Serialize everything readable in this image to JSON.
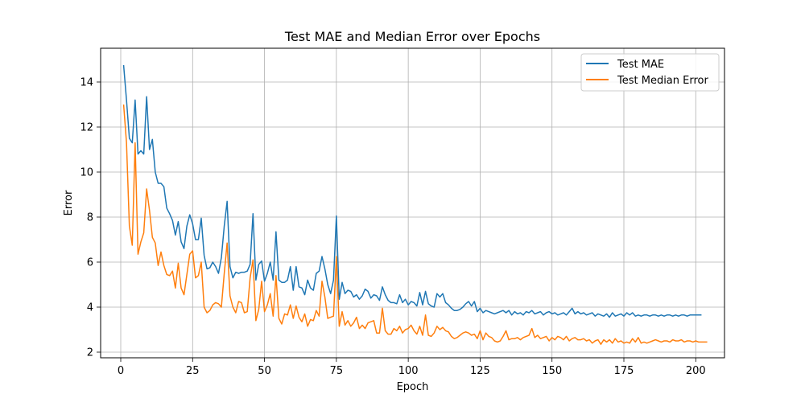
{
  "chart_data": {
    "type": "line",
    "title": "Test MAE and Median Error over Epochs",
    "xlabel": "Epoch",
    "ylabel": "Error",
    "xlim": [
      -7,
      210
    ],
    "ylim": [
      1.75,
      15.5
    ],
    "xticks": [
      0,
      25,
      50,
      75,
      100,
      125,
      150,
      175,
      200
    ],
    "yticks": [
      2,
      4,
      6,
      8,
      10,
      12,
      14
    ],
    "grid": true,
    "legend_position": "top-right",
    "series": [
      {
        "name": "Test MAE",
        "color": "#1f77b4",
        "x_start": 1,
        "values": [
          14.75,
          13.2,
          11.5,
          11.3,
          13.2,
          10.8,
          10.95,
          10.8,
          13.35,
          11.0,
          11.45,
          10.0,
          9.5,
          9.5,
          9.35,
          8.4,
          8.15,
          7.85,
          7.2,
          7.8,
          6.9,
          6.6,
          7.6,
          8.1,
          7.7,
          7.0,
          7.0,
          7.95,
          6.3,
          5.7,
          5.75,
          6.0,
          5.8,
          5.5,
          6.2,
          7.6,
          8.7,
          5.8,
          5.3,
          5.55,
          5.5,
          5.55,
          5.55,
          5.6,
          5.9,
          8.15,
          5.2,
          5.9,
          6.05,
          5.15,
          5.5,
          6.0,
          5.2,
          7.35,
          5.2,
          5.1,
          5.1,
          5.2,
          5.8,
          4.75,
          5.8,
          4.9,
          4.85,
          4.55,
          5.2,
          4.85,
          4.75,
          5.5,
          5.6,
          6.25,
          5.7,
          5.0,
          4.6,
          5.2,
          8.05,
          4.35,
          5.1,
          4.6,
          4.75,
          4.7,
          4.45,
          4.55,
          4.35,
          4.5,
          4.8,
          4.7,
          4.4,
          4.55,
          4.5,
          4.3,
          4.9,
          4.55,
          4.3,
          4.2,
          4.2,
          4.15,
          4.55,
          4.2,
          4.35,
          4.1,
          4.25,
          4.2,
          4.05,
          4.65,
          4.1,
          4.7,
          4.15,
          4.05,
          4.0,
          4.6,
          4.45,
          4.6,
          4.2,
          4.1,
          3.95,
          3.85,
          3.85,
          3.9,
          4.0,
          4.15,
          4.25,
          4.05,
          4.25,
          3.8,
          3.95,
          3.75,
          3.85,
          3.8,
          3.75,
          3.7,
          3.75,
          3.8,
          3.85,
          3.75,
          3.85,
          3.65,
          3.8,
          3.7,
          3.75,
          3.65,
          3.8,
          3.75,
          3.85,
          3.7,
          3.75,
          3.8,
          3.65,
          3.75,
          3.8,
          3.7,
          3.75,
          3.65,
          3.7,
          3.75,
          3.65,
          3.8,
          3.95,
          3.7,
          3.8,
          3.7,
          3.75,
          3.65,
          3.7,
          3.75,
          3.6,
          3.7,
          3.65,
          3.6,
          3.7,
          3.55,
          3.75,
          3.6,
          3.65,
          3.7,
          3.6,
          3.75,
          3.65,
          3.75,
          3.6,
          3.65,
          3.6,
          3.65,
          3.65,
          3.6,
          3.65,
          3.65,
          3.6,
          3.65,
          3.6,
          3.65,
          3.65,
          3.6,
          3.65,
          3.6,
          3.65,
          3.65,
          3.6,
          3.65,
          3.65,
          3.65,
          3.65,
          3.65
        ]
      },
      {
        "name": "Test Median Error",
        "color": "#ff7f0e",
        "x_start": 1,
        "values": [
          13.0,
          11.3,
          7.6,
          6.75,
          11.3,
          6.35,
          6.9,
          7.3,
          9.25,
          8.3,
          7.1,
          6.85,
          5.85,
          6.45,
          5.85,
          5.45,
          5.4,
          5.6,
          4.85,
          5.95,
          4.85,
          4.55,
          5.45,
          6.35,
          6.5,
          5.3,
          5.4,
          6.0,
          4.0,
          3.75,
          3.85,
          4.1,
          4.2,
          4.15,
          4.0,
          5.5,
          6.85,
          4.5,
          4.0,
          3.75,
          4.25,
          4.2,
          3.75,
          3.8,
          5.3,
          6.1,
          3.4,
          3.9,
          5.15,
          3.8,
          4.1,
          4.6,
          3.6,
          5.4,
          3.5,
          3.25,
          3.7,
          3.65,
          4.1,
          3.5,
          4.05,
          3.55,
          3.35,
          3.7,
          3.15,
          3.45,
          3.4,
          3.85,
          3.6,
          5.15,
          4.45,
          3.5,
          3.55,
          3.6,
          6.25,
          3.15,
          3.8,
          3.2,
          3.4,
          3.15,
          3.3,
          3.55,
          3.05,
          3.2,
          3.05,
          3.3,
          3.35,
          3.4,
          2.85,
          2.85,
          3.95,
          2.95,
          2.8,
          2.8,
          3.05,
          2.95,
          3.15,
          2.85,
          3.0,
          3.05,
          3.2,
          2.95,
          2.8,
          3.15,
          2.75,
          3.65,
          2.75,
          2.7,
          2.85,
          3.15,
          3.0,
          3.1,
          2.95,
          2.9,
          2.7,
          2.6,
          2.65,
          2.75,
          2.85,
          2.9,
          2.85,
          2.75,
          2.8,
          2.6,
          2.95,
          2.55,
          2.85,
          2.7,
          2.65,
          2.5,
          2.45,
          2.5,
          2.7,
          2.95,
          2.55,
          2.6,
          2.6,
          2.65,
          2.55,
          2.65,
          2.7,
          2.75,
          3.05,
          2.65,
          2.75,
          2.6,
          2.65,
          2.7,
          2.5,
          2.65,
          2.55,
          2.7,
          2.65,
          2.55,
          2.7,
          2.5,
          2.6,
          2.65,
          2.55,
          2.55,
          2.6,
          2.5,
          2.55,
          2.4,
          2.5,
          2.55,
          2.35,
          2.55,
          2.45,
          2.55,
          2.4,
          2.6,
          2.45,
          2.5,
          2.4,
          2.45,
          2.4,
          2.6,
          2.45,
          2.65,
          2.4,
          2.45,
          2.4,
          2.45,
          2.5,
          2.55,
          2.5,
          2.45,
          2.5,
          2.5,
          2.45,
          2.55,
          2.5,
          2.5,
          2.55,
          2.45,
          2.5,
          2.5,
          2.45,
          2.5,
          2.45,
          2.45,
          2.45,
          2.45
        ]
      }
    ]
  }
}
